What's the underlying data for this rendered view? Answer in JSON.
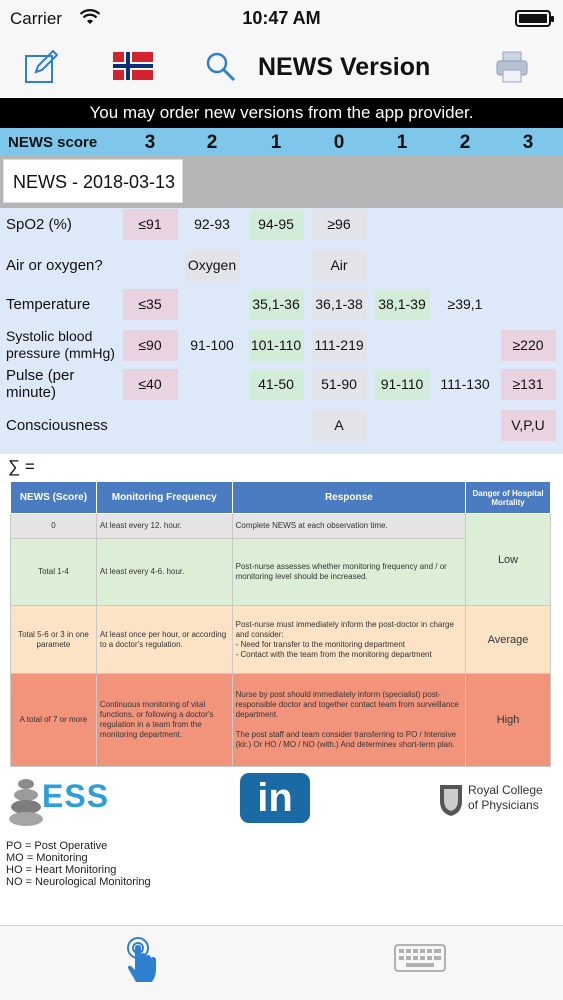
{
  "status_bar": {
    "carrier": "Carrier",
    "time": "10:47 AM"
  },
  "nav": {
    "title": "NEWS Version",
    "icons": [
      "edit-icon",
      "norway-flag-icon",
      "search-icon",
      "printer-icon"
    ]
  },
  "banner": "You may order new versions from the app provider.",
  "score_header": {
    "label": "NEWS score",
    "scores": [
      "3",
      "2",
      "1",
      "0",
      "1",
      "2",
      "3"
    ]
  },
  "record": {
    "title": "NEWS - 2018-03-13"
  },
  "parameters": [
    {
      "label": "SpO2 (%)",
      "cells": [
        {
          "col": 0,
          "text": "≤91",
          "tone": "pink"
        },
        {
          "col": 1,
          "text": "92-93",
          "tone": "none"
        },
        {
          "col": 2,
          "text": "94-95",
          "tone": "green"
        },
        {
          "col": 3,
          "text": "≥96",
          "tone": "grey"
        }
      ]
    },
    {
      "label": "Air or oxygen?",
      "cells": [
        {
          "col": 1,
          "text": "Oxygen",
          "tone": "grey"
        },
        {
          "col": 3,
          "text": "Air",
          "tone": "grey"
        }
      ]
    },
    {
      "label": "Temperature",
      "cells": [
        {
          "col": 0,
          "text": "≤35",
          "tone": "pink"
        },
        {
          "col": 2,
          "text": "35,1-36",
          "tone": "green"
        },
        {
          "col": 3,
          "text": "36,1-38",
          "tone": "grey"
        },
        {
          "col": 4,
          "text": "38,1-39",
          "tone": "green"
        },
        {
          "col": 5,
          "text": "≥39,1",
          "tone": "none"
        }
      ]
    },
    {
      "label": "Systolic blood pressure (mmHg)",
      "cells": [
        {
          "col": 0,
          "text": "≤90",
          "tone": "pink"
        },
        {
          "col": 1,
          "text": "91-100",
          "tone": "none"
        },
        {
          "col": 2,
          "text": "101-110",
          "tone": "green"
        },
        {
          "col": 3,
          "text": "111-219",
          "tone": "grey"
        },
        {
          "col": 6,
          "text": "≥220",
          "tone": "pink"
        }
      ]
    },
    {
      "label": "Pulse (per minute)",
      "cells": [
        {
          "col": 0,
          "text": "≤40",
          "tone": "pink"
        },
        {
          "col": 2,
          "text": "41-50",
          "tone": "green"
        },
        {
          "col": 3,
          "text": "51-90",
          "tone": "grey"
        },
        {
          "col": 4,
          "text": "91-110",
          "tone": "green"
        },
        {
          "col": 5,
          "text": "111-130",
          "tone": "none"
        },
        {
          "col": 6,
          "text": "≥131",
          "tone": "pink"
        }
      ]
    },
    {
      "label": "Consciousness",
      "cells": [
        {
          "col": 3,
          "text": "A",
          "tone": "grey"
        },
        {
          "col": 6,
          "text": "V,P,U",
          "tone": "pink"
        }
      ]
    }
  ],
  "sum_label": "∑ =",
  "reference_table": {
    "headers": [
      "NEWS (Score)",
      "Monitoring Frequency",
      "Response",
      "Danger of Hospital Mortality"
    ],
    "rows": [
      {
        "score": "0",
        "frequency": "At least every 12. hour.",
        "response": "Complete NEWS at each observation time."
      },
      {
        "score": "Total 1-4",
        "frequency": "At least every 4-6. hour.",
        "response": "Post-nurse assesses whether monitoring frequency and / or monitoring level should be increased."
      },
      {
        "score": "Total 5-6 or 3 in one paramete",
        "frequency": "At least once per hour, or according to a doctor's regulation.",
        "response": "Post-nurse must immediately inform the post-doctor in charge and consider:\n - Need for transfer to the monitoring department\n - Contact with the team from the monitoring department"
      },
      {
        "score": "A total of 7 or more",
        "frequency": "Continuous monitoring of vital functions, or following a doctor's regulation in a team from the monitoring department.",
        "response": "Nurse by post should immediately inform (specialist) post-responsible doctor and together contact team from surveillance department.\n\nThe post staff and team consider transferring to PO / Intensive (kir.) Or HO / MO / NO (with.) And determines short-term plan."
      }
    ],
    "mortality": [
      "Low",
      "Average",
      "High"
    ]
  },
  "logos": {
    "ess": "ESS",
    "linkedin": "in",
    "rcp": "Royal College of Physicians"
  },
  "abbreviations": [
    "PO = Post Operative",
    "MO = Monitoring",
    "HO = Heart Monitoring",
    "NO = Neurological Monitoring"
  ],
  "tabs": [
    "touch-icon",
    "keyboard-icon"
  ],
  "colors": {
    "header_blue": "#7ec6ea",
    "banner": "#000000",
    "score3": "#ead3e1",
    "score1": "#d3ecd8",
    "score0": "#e3e4ea",
    "table_header": "#4b7bc0"
  }
}
